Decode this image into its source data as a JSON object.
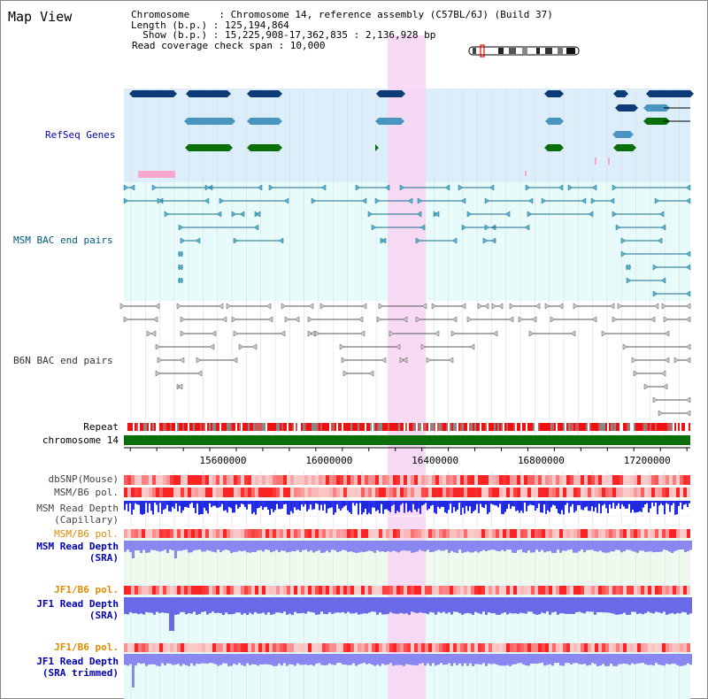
{
  "title": "Map View",
  "info": {
    "chromosome_line": "Chromosome     : Chromosome 14, reference assembly (C57BL/6J) (Build 37)",
    "length_line": "Length (b.p.) : 125,194,864",
    "show_line": "  Show (b.p.) : 15,225,908-17,362,835 : 2,136,928 bp",
    "coverage_line": "Read coverage check span : 10,000"
  },
  "tracks": {
    "refseq": "RefSeq Genes",
    "msm_bac": "MSM BAC end pairs",
    "b6n_bac": "B6N BAC end pairs",
    "repeat": "Repeat",
    "chromosome": "chromosome 14",
    "dbsnp": "dbSNP(Mouse)",
    "msm_b6_pol": "MSM/B6 pol.",
    "msm_depth_cap_1": "MSM Read Depth",
    "msm_depth_cap_2": "(Capillary)",
    "msm_b6_pol_sra": "MSM/B6 pol.",
    "msm_depth_sra_1": "MSM Read Depth",
    "msm_depth_sra_2": "(SRA)",
    "jf1_b6_pol": "JF1/B6 pol.",
    "jf1_depth_sra_1": "JF1 Read Depth",
    "jf1_depth_sra_2": "(SRA)",
    "jf1_b6_pol_trim": "JF1/B6 pol.",
    "jf1_depth_trim_1": "JF1 Read Depth",
    "jf1_depth_trim_2": "(SRA trimmed)"
  },
  "axis": {
    "start": 15225908,
    "end": 17362835,
    "ticks": [
      "15600000",
      "16000000",
      "16400000",
      "16800000",
      "17200000"
    ]
  },
  "colors": {
    "refseq_bg": "#dbeefa",
    "bac_bg": "#e8fbfb",
    "highlight": "#f7d6f3",
    "gene_dark": "#0d3b78",
    "gene_mid": "#4a95c0",
    "gene_green": "#0a6e0a",
    "chromosome_bar": "#0a6e0a",
    "depth_blue": "#1f2ae0",
    "depth_light": "#8888f0"
  }
}
